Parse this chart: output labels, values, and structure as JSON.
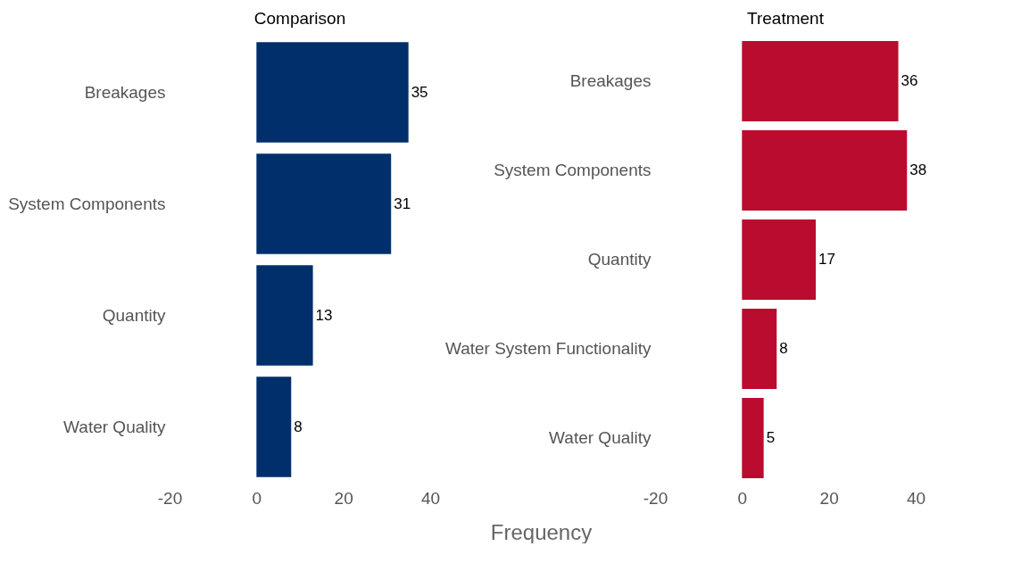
{
  "chart_data": [
    {
      "type": "bar",
      "orientation": "horizontal",
      "title": "Comparison",
      "categories": [
        "Breakages",
        "System Components",
        "Quantity",
        "Water Quality"
      ],
      "values": [
        35,
        31,
        13,
        8
      ],
      "color": "#002f6c",
      "xlim": [
        -20,
        40
      ],
      "xticks": [
        -20,
        0,
        20,
        40
      ],
      "data_labels": true
    },
    {
      "type": "bar",
      "orientation": "horizontal",
      "title": "Treatment",
      "xlabel": "Frequency",
      "categories": [
        "Breakages",
        "System Components",
        "Quantity",
        "Water System Functionality",
        "Water Quality"
      ],
      "values": [
        36,
        38,
        17,
        8,
        5
      ],
      "color": "#ba0c2f",
      "xlim": [
        -20,
        40
      ],
      "xticks": [
        -20,
        0,
        20,
        40
      ],
      "data_labels": true
    }
  ]
}
